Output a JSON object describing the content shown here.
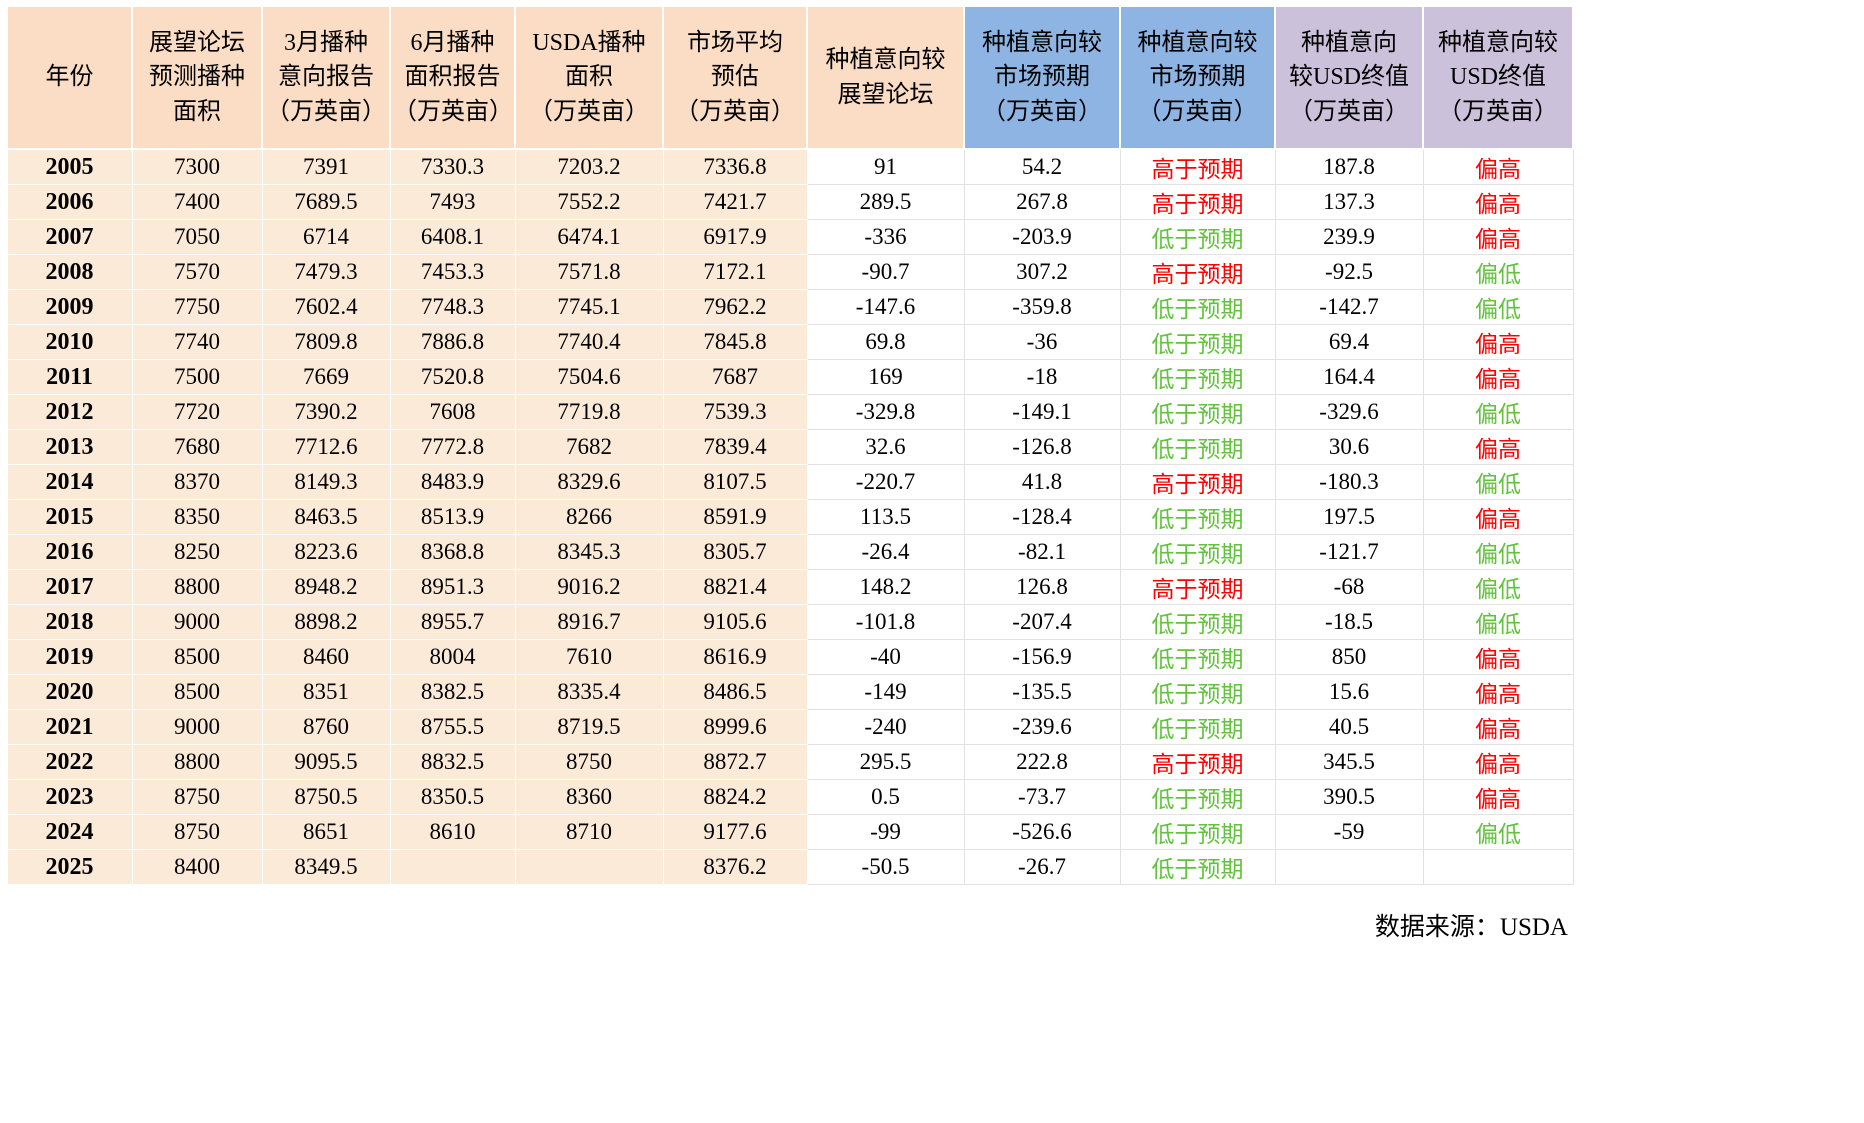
{
  "chart_data": {
    "type": "table",
    "title": "",
    "columns": [
      "年份",
      "展望论坛\n预测播种\n面积",
      "3月播种\n意向报告\n（万英亩）",
      "6月播种\n面积报告\n（万英亩）",
      "USDA播种\n面积\n（万英亩）",
      "市场平均\n预估\n（万英亩）",
      "种植意向较\n展望论坛",
      "种植意向较\n市场预期\n（万英亩）",
      "种植意向较\n市场预期\n（万英亩）",
      "种植意向\n较USD终值\n（万英亩）",
      "种植意向较\nUSD终值\n（万英亩）"
    ],
    "rows": [
      [
        "2005",
        "7300",
        "7391",
        "7330.3",
        "7203.2",
        "7336.8",
        "91",
        "54.2",
        "高于预期",
        "187.8",
        "偏高"
      ],
      [
        "2006",
        "7400",
        "7689.5",
        "7493",
        "7552.2",
        "7421.7",
        "289.5",
        "267.8",
        "高于预期",
        "137.3",
        "偏高"
      ],
      [
        "2007",
        "7050",
        "6714",
        "6408.1",
        "6474.1",
        "6917.9",
        "-336",
        "-203.9",
        "低于预期",
        "239.9",
        "偏高"
      ],
      [
        "2008",
        "7570",
        "7479.3",
        "7453.3",
        "7571.8",
        "7172.1",
        "-90.7",
        "307.2",
        "高于预期",
        "-92.5",
        "偏低"
      ],
      [
        "2009",
        "7750",
        "7602.4",
        "7748.3",
        "7745.1",
        "7962.2",
        "-147.6",
        "-359.8",
        "低于预期",
        "-142.7",
        "偏低"
      ],
      [
        "2010",
        "7740",
        "7809.8",
        "7886.8",
        "7740.4",
        "7845.8",
        "69.8",
        "-36",
        "低于预期",
        "69.4",
        "偏高"
      ],
      [
        "2011",
        "7500",
        "7669",
        "7520.8",
        "7504.6",
        "7687",
        "169",
        "-18",
        "低于预期",
        "164.4",
        "偏高"
      ],
      [
        "2012",
        "7720",
        "7390.2",
        "7608",
        "7719.8",
        "7539.3",
        "-329.8",
        "-149.1",
        "低于预期",
        "-329.6",
        "偏低"
      ],
      [
        "2013",
        "7680",
        "7712.6",
        "7772.8",
        "7682",
        "7839.4",
        "32.6",
        "-126.8",
        "低于预期",
        "30.6",
        "偏高"
      ],
      [
        "2014",
        "8370",
        "8149.3",
        "8483.9",
        "8329.6",
        "8107.5",
        "-220.7",
        "41.8",
        "高于预期",
        "-180.3",
        "偏低"
      ],
      [
        "2015",
        "8350",
        "8463.5",
        "8513.9",
        "8266",
        "8591.9",
        "113.5",
        "-128.4",
        "低于预期",
        "197.5",
        "偏高"
      ],
      [
        "2016",
        "8250",
        "8223.6",
        "8368.8",
        "8345.3",
        "8305.7",
        "-26.4",
        "-82.1",
        "低于预期",
        "-121.7",
        "偏低"
      ],
      [
        "2017",
        "8800",
        "8948.2",
        "8951.3",
        "9016.2",
        "8821.4",
        "148.2",
        "126.8",
        "高于预期",
        "-68",
        "偏低"
      ],
      [
        "2018",
        "9000",
        "8898.2",
        "8955.7",
        "8916.7",
        "9105.6",
        "-101.8",
        "-207.4",
        "低于预期",
        "-18.5",
        "偏低"
      ],
      [
        "2019",
        "8500",
        "8460",
        "8004",
        "7610",
        "8616.9",
        "-40",
        "-156.9",
        "低于预期",
        "850",
        "偏高"
      ],
      [
        "2020",
        "8500",
        "8351",
        "8382.5",
        "8335.4",
        "8486.5",
        "-149",
        "-135.5",
        "低于预期",
        "15.6",
        "偏高"
      ],
      [
        "2021",
        "9000",
        "8760",
        "8755.5",
        "8719.5",
        "8999.6",
        "-240",
        "-239.6",
        "低于预期",
        "40.5",
        "偏高"
      ],
      [
        "2022",
        "8800",
        "9095.5",
        "8832.5",
        "8750",
        "8872.7",
        "295.5",
        "222.8",
        "高于预期",
        "345.5",
        "偏高"
      ],
      [
        "2023",
        "8750",
        "8750.5",
        "8350.5",
        "8360",
        "8824.2",
        "0.5",
        "-73.7",
        "低于预期",
        "390.5",
        "偏高"
      ],
      [
        "2024",
        "8750",
        "8651",
        "8610",
        "8710",
        "9177.6",
        "-99",
        "-526.6",
        "低于预期",
        "-59",
        "偏低"
      ],
      [
        "2025",
        "8400",
        "8349.5",
        "",
        "",
        "8376.2",
        "-50.5",
        "-26.7",
        "低于预期",
        "",
        ""
      ]
    ],
    "legend": {
      "red_values": [
        "高于预期",
        "偏高"
      ],
      "green_values": [
        "低于预期",
        "偏低"
      ]
    },
    "colors": {
      "header_peach": "#fbddc5",
      "header_blue": "#8db4e2",
      "header_purple": "#ccc1da",
      "body_peach": "#fcead9",
      "red": "#fe0000",
      "green": "#62c23e"
    }
  },
  "footer": {
    "source": "数据来源：USDA"
  }
}
